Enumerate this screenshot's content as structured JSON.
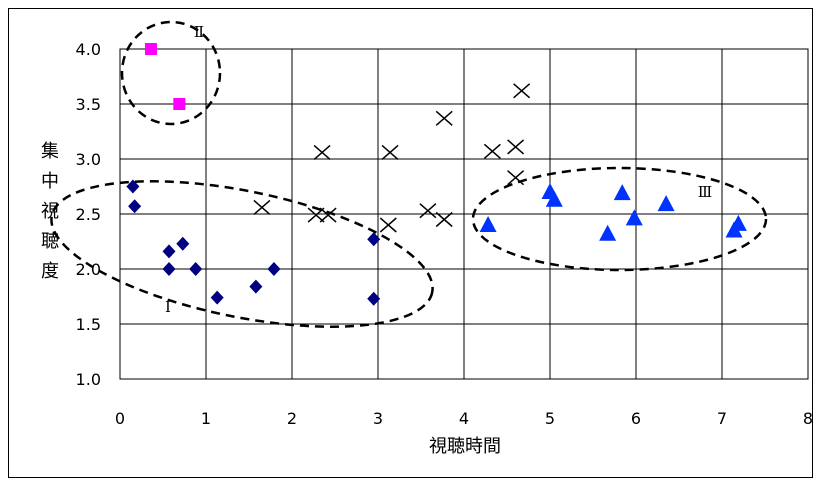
{
  "chart_data": {
    "type": "scatter",
    "xlabel": "視聴時間",
    "ylabel": "集中視聴度",
    "xlim": [
      0,
      8
    ],
    "ylim": [
      1.0,
      4.0
    ],
    "xticks": [
      "0",
      "1",
      "2",
      "3",
      "4",
      "5",
      "6",
      "7",
      "8"
    ],
    "yticks": [
      "1.0",
      "1.5",
      "2.0",
      "2.5",
      "3.0",
      "3.5",
      "4.0"
    ],
    "grid": true,
    "series": [
      {
        "marker": "diamond",
        "color": "#000080",
        "points": [
          [
            0.15,
            2.75
          ],
          [
            0.17,
            2.57
          ],
          [
            0.57,
            2.16
          ],
          [
            0.57,
            2.0
          ],
          [
            0.73,
            2.23
          ],
          [
            0.88,
            2.0
          ],
          [
            1.13,
            1.74
          ],
          [
            1.58,
            1.84
          ],
          [
            1.79,
            2.0
          ],
          [
            2.95,
            2.27
          ],
          [
            2.95,
            1.73
          ]
        ]
      },
      {
        "marker": "square",
        "color": "#ff00ff",
        "points": [
          [
            0.36,
            4.0
          ],
          [
            0.69,
            3.5
          ]
        ]
      },
      {
        "marker": "cross",
        "color": "#000000",
        "points": [
          [
            2.35,
            3.06
          ],
          [
            3.14,
            3.06
          ],
          [
            3.77,
            3.37
          ],
          [
            4.33,
            3.07
          ],
          [
            4.6,
            3.11
          ],
          [
            4.67,
            3.62
          ],
          [
            4.6,
            2.83
          ],
          [
            1.65,
            2.56
          ],
          [
            2.28,
            2.49
          ],
          [
            2.42,
            2.49
          ],
          [
            3.12,
            2.4
          ],
          [
            3.58,
            2.53
          ],
          [
            3.77,
            2.45
          ]
        ]
      },
      {
        "marker": "triangle",
        "color": "#0033ff",
        "points": [
          [
            4.28,
            2.4
          ],
          [
            5.0,
            2.7
          ],
          [
            5.05,
            2.63
          ],
          [
            5.84,
            2.69
          ],
          [
            5.98,
            2.46
          ],
          [
            5.67,
            2.32
          ],
          [
            6.35,
            2.59
          ],
          [
            7.14,
            2.35
          ],
          [
            7.19,
            2.41
          ]
        ]
      }
    ],
    "annotations": [
      {
        "text": "Ⅰ",
        "shape": "dashed-ellipse"
      },
      {
        "text": "Ⅱ",
        "shape": "dashed-ellipse"
      },
      {
        "text": "Ⅲ",
        "shape": "dashed-ellipse"
      }
    ]
  }
}
